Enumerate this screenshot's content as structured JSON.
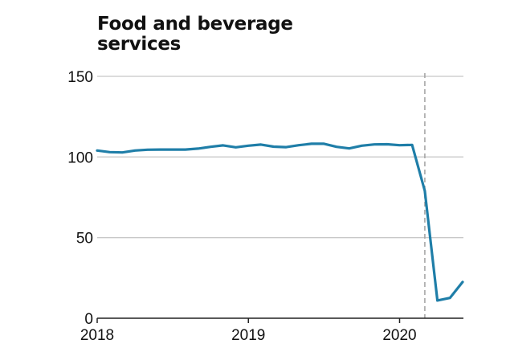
{
  "chart_data": {
    "type": "line",
    "title_lines": [
      "Food and beverage",
      "services"
    ],
    "xlabel": "",
    "ylabel": "",
    "xlim": [
      2018,
      2020.5
    ],
    "ylim": [
      0,
      150
    ],
    "x_ticks": [
      2018,
      2019,
      2020
    ],
    "x_tick_labels": [
      "2018",
      "2019",
      "2020"
    ],
    "y_ticks": [
      0,
      50,
      100,
      150
    ],
    "y_tick_labels": [
      "0",
      "50",
      "100",
      "150"
    ],
    "grid": true,
    "reference_line_x": 2020.167,
    "series": [
      {
        "color": "#1f7ea8",
        "x": [
          2018.0,
          2018.083,
          2018.167,
          2018.25,
          2018.333,
          2018.417,
          2018.5,
          2018.583,
          2018.667,
          2018.75,
          2018.833,
          2018.917,
          2019.0,
          2019.083,
          2019.167,
          2019.25,
          2019.333,
          2019.417,
          2019.5,
          2019.583,
          2019.667,
          2019.75,
          2019.833,
          2019.917,
          2020.0,
          2020.083,
          2020.167,
          2020.25,
          2020.333,
          2020.417
        ],
        "values": [
          104.0,
          103.0,
          102.8,
          104.0,
          104.5,
          104.6,
          104.6,
          104.6,
          105.2,
          106.3,
          107.2,
          106.0,
          107.0,
          107.7,
          106.4,
          106.1,
          107.3,
          108.2,
          108.2,
          106.3,
          105.3,
          107.0,
          107.8,
          107.9,
          107.3,
          107.5,
          79.0,
          11.0,
          12.6,
          22.5
        ]
      }
    ]
  }
}
